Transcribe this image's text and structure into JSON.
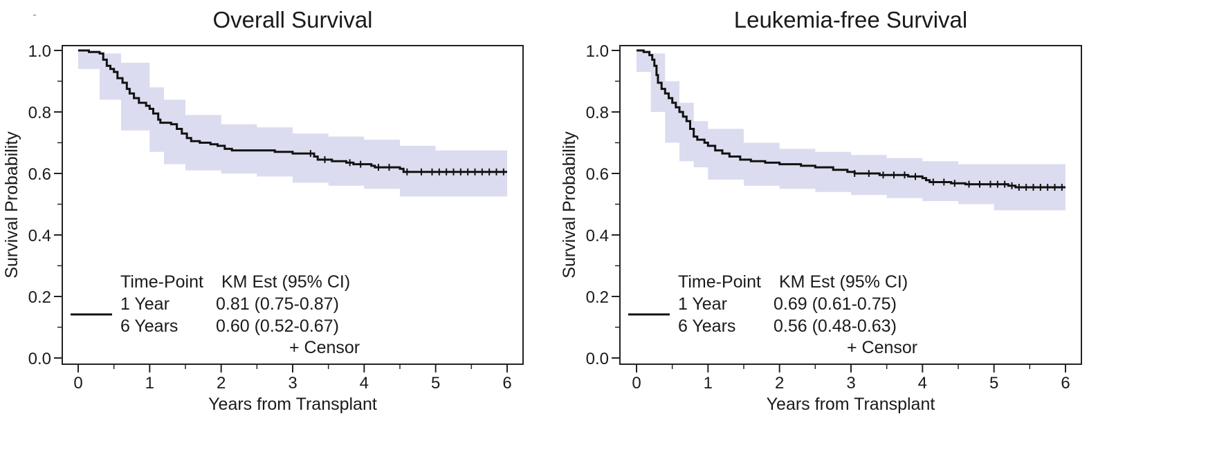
{
  "chart_data": [
    {
      "type": "line",
      "subtype": "kaplan-meier",
      "title": "Overall Survival",
      "xlabel": "Years from Transplant",
      "ylabel": "Survival Probability",
      "xlim": [
        0,
        6
      ],
      "ylim": [
        0,
        1
      ],
      "xticks": [
        "0",
        "1",
        "2",
        "3",
        "4",
        "5",
        "6"
      ],
      "yticks": [
        "0.0",
        "0.2",
        "0.4",
        "0.6",
        "0.8",
        "1.0"
      ],
      "series": [
        {
          "name": "KM Estimate",
          "steps": [
            [
              0,
              1.0
            ],
            [
              0.15,
              0.995
            ],
            [
              0.3,
              0.99
            ],
            [
              0.35,
              0.97
            ],
            [
              0.4,
              0.95
            ],
            [
              0.45,
              0.94
            ],
            [
              0.5,
              0.93
            ],
            [
              0.55,
              0.91
            ],
            [
              0.62,
              0.895
            ],
            [
              0.68,
              0.875
            ],
            [
              0.72,
              0.86
            ],
            [
              0.78,
              0.845
            ],
            [
              0.85,
              0.83
            ],
            [
              0.95,
              0.82
            ],
            [
              1.0,
              0.81
            ],
            [
              1.05,
              0.795
            ],
            [
              1.12,
              0.775
            ],
            [
              1.15,
              0.765
            ],
            [
              1.3,
              0.76
            ],
            [
              1.38,
              0.745
            ],
            [
              1.45,
              0.73
            ],
            [
              1.52,
              0.715
            ],
            [
              1.58,
              0.705
            ],
            [
              1.7,
              0.7
            ],
            [
              1.85,
              0.695
            ],
            [
              1.95,
              0.69
            ],
            [
              2.05,
              0.68
            ],
            [
              2.15,
              0.675
            ],
            [
              2.6,
              0.675
            ],
            [
              2.75,
              0.67
            ],
            [
              3.0,
              0.665
            ],
            [
              3.3,
              0.655
            ],
            [
              3.35,
              0.645
            ],
            [
              3.55,
              0.64
            ],
            [
              3.75,
              0.635
            ],
            [
              3.85,
              0.63
            ],
            [
              4.1,
              0.625
            ],
            [
              4.15,
              0.62
            ],
            [
              4.5,
              0.615
            ],
            [
              4.55,
              0.605
            ],
            [
              6.0,
              0.605
            ]
          ]
        }
      ],
      "ci_band": {
        "color": "#dcdcf0",
        "x": [
          0,
          0.3,
          0.6,
          1.0,
          1.2,
          1.5,
          2.0,
          2.5,
          3.0,
          3.5,
          4.0,
          4.5,
          5.0,
          6.0
        ],
        "upper": [
          1.0,
          0.99,
          0.96,
          0.88,
          0.84,
          0.79,
          0.76,
          0.75,
          0.73,
          0.72,
          0.71,
          0.69,
          0.675,
          0.675
        ],
        "lower": [
          0.96,
          0.94,
          0.84,
          0.74,
          0.67,
          0.63,
          0.61,
          0.6,
          0.59,
          0.57,
          0.56,
          0.55,
          0.525,
          0.525
        ]
      },
      "censor_times": [
        3.25,
        3.45,
        3.8,
        3.95,
        4.2,
        4.35,
        4.6,
        4.8,
        4.95,
        5.05,
        5.15,
        5.25,
        5.35,
        5.45,
        5.55,
        5.65,
        5.75,
        5.85,
        5.95
      ],
      "legend": {
        "headers": [
          "Time-Point",
          "KM Est (95% CI)"
        ],
        "rows": [
          {
            "timepoint": "1 Year",
            "estimate": "0.81 (0.75-0.87)"
          },
          {
            "timepoint": "6 Years",
            "estimate": "0.60 (0.52-0.67)"
          }
        ],
        "censor_label": "+ Censor"
      }
    },
    {
      "type": "line",
      "subtype": "kaplan-meier",
      "title": "Leukemia-free Survival",
      "xlabel": "Years from Transplant",
      "ylabel": "Survival Probability",
      "xlim": [
        0,
        6
      ],
      "ylim": [
        0,
        1
      ],
      "xticks": [
        "0",
        "1",
        "2",
        "3",
        "4",
        "5",
        "6"
      ],
      "yticks": [
        "0.0",
        "0.2",
        "0.4",
        "0.6",
        "0.8",
        "1.0"
      ],
      "series": [
        {
          "name": "KM Estimate",
          "steps": [
            [
              0,
              1.0
            ],
            [
              0.1,
              0.995
            ],
            [
              0.18,
              0.985
            ],
            [
              0.22,
              0.97
            ],
            [
              0.25,
              0.95
            ],
            [
              0.28,
              0.92
            ],
            [
              0.3,
              0.895
            ],
            [
              0.35,
              0.875
            ],
            [
              0.4,
              0.86
            ],
            [
              0.45,
              0.845
            ],
            [
              0.5,
              0.83
            ],
            [
              0.55,
              0.815
            ],
            [
              0.6,
              0.8
            ],
            [
              0.65,
              0.785
            ],
            [
              0.7,
              0.77
            ],
            [
              0.75,
              0.745
            ],
            [
              0.8,
              0.72
            ],
            [
              0.85,
              0.71
            ],
            [
              0.95,
              0.7
            ],
            [
              1.0,
              0.69
            ],
            [
              1.1,
              0.675
            ],
            [
              1.2,
              0.665
            ],
            [
              1.3,
              0.655
            ],
            [
              1.45,
              0.645
            ],
            [
              1.6,
              0.64
            ],
            [
              1.8,
              0.635
            ],
            [
              2.0,
              0.63
            ],
            [
              2.3,
              0.625
            ],
            [
              2.5,
              0.62
            ],
            [
              2.75,
              0.612
            ],
            [
              2.95,
              0.605
            ],
            [
              3.05,
              0.6
            ],
            [
              3.4,
              0.595
            ],
            [
              3.8,
              0.59
            ],
            [
              4.0,
              0.585
            ],
            [
              4.05,
              0.578
            ],
            [
              4.1,
              0.572
            ],
            [
              4.4,
              0.568
            ],
            [
              4.6,
              0.565
            ],
            [
              5.2,
              0.56
            ],
            [
              5.3,
              0.555
            ],
            [
              6.0,
              0.555
            ]
          ]
        }
      ],
      "ci_band": {
        "color": "#dcdcf0",
        "x": [
          0,
          0.2,
          0.4,
          0.6,
          0.8,
          1.0,
          1.5,
          2.0,
          2.5,
          3.0,
          3.5,
          4.0,
          4.5,
          5.0,
          5.5,
          6.0
        ],
        "upper": [
          1.0,
          0.99,
          0.9,
          0.83,
          0.77,
          0.745,
          0.7,
          0.68,
          0.67,
          0.66,
          0.65,
          0.64,
          0.63,
          0.63,
          0.63,
          0.63
        ],
        "lower": [
          0.97,
          0.93,
          0.8,
          0.7,
          0.64,
          0.62,
          0.58,
          0.56,
          0.55,
          0.54,
          0.53,
          0.52,
          0.51,
          0.5,
          0.48,
          0.48
        ]
      },
      "censor_times": [
        3.05,
        3.25,
        3.45,
        3.6,
        3.75,
        3.9,
        4.15,
        4.3,
        4.45,
        4.65,
        4.8,
        4.95,
        5.05,
        5.15,
        5.25,
        5.35,
        5.45,
        5.55,
        5.65,
        5.75,
        5.85,
        5.95
      ],
      "legend": {
        "headers": [
          "Time-Point",
          "KM Est (95% CI)"
        ],
        "rows": [
          {
            "timepoint": "1 Year",
            "estimate": "0.69 (0.61-0.75)"
          },
          {
            "timepoint": "6 Years",
            "estimate": "0.56 (0.48-0.63)"
          }
        ],
        "censor_label": "+ Censor"
      }
    }
  ]
}
